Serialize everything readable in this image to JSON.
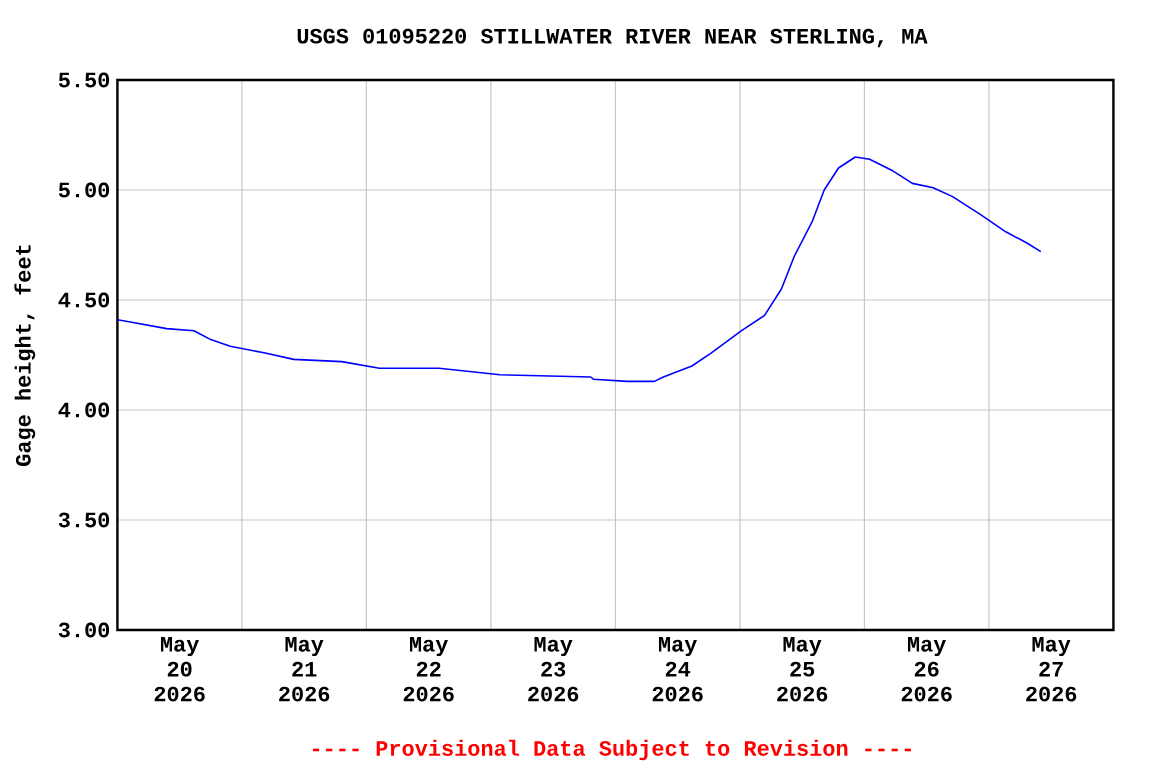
{
  "chart_data": {
    "type": "line",
    "title": "USGS 01095220 STILLWATER RIVER NEAR STERLING, MA",
    "ylabel": "Gage height, feet",
    "x": [
      "2026-05-20T00:00",
      "2026-05-20T02:30",
      "2026-05-20T09:30",
      "2026-05-20T14:45",
      "2026-05-20T18:00",
      "2026-05-20T21:45",
      "2026-05-21T04:15",
      "2026-05-21T10:00",
      "2026-05-21T19:15",
      "2026-05-22T02:30",
      "2026-05-22T14:00",
      "2026-05-23T01:45",
      "2026-05-23T19:15",
      "2026-05-23T19:45",
      "2026-05-24T02:15",
      "2026-05-24T07:30",
      "2026-05-24T09:15",
      "2026-05-24T14:45",
      "2026-05-24T18:30",
      "2026-05-25T00:15",
      "2026-05-25T04:45",
      "2026-05-25T08:00",
      "2026-05-25T10:30",
      "2026-05-25T14:00",
      "2026-05-25T16:15",
      "2026-05-25T19:00",
      "2026-05-25T22:15",
      "2026-05-26T01:00",
      "2026-05-26T05:15",
      "2026-05-26T09:15",
      "2026-05-26T13:15",
      "2026-05-26T17:00",
      "2026-05-26T22:15",
      "2026-05-27T03:15",
      "2026-05-27T07:15",
      "2026-05-27T10:00"
    ],
    "series": [
      {
        "color": "#0000ff",
        "values": [
          4.41,
          4.4,
          4.37,
          4.36,
          4.32,
          4.29,
          4.26,
          4.23,
          4.22,
          4.19,
          4.19,
          4.16,
          4.15,
          4.14,
          4.13,
          4.13,
          4.15,
          4.2,
          4.26,
          4.36,
          4.43,
          4.55,
          4.7,
          4.86,
          5.0,
          5.1,
          5.15,
          5.14,
          5.09,
          5.03,
          5.01,
          4.97,
          4.89,
          4.81,
          4.76,
          4.72
        ]
      }
    ],
    "xlim": [
      "2026-05-20T00:00",
      "2026-05-28T00:00"
    ],
    "xticks": [
      {
        "value": "2026-05-21T00:00",
        "label": null
      },
      {
        "value": "2026-05-22T00:00",
        "label": null
      },
      {
        "value": "2026-05-23T00:00",
        "label": null
      },
      {
        "value": "2026-05-24T00:00",
        "label": null
      },
      {
        "value": "2026-05-25T00:00",
        "label": null
      },
      {
        "value": "2026-05-26T00:00",
        "label": null
      },
      {
        "value": "2026-05-27T00:00",
        "label": null
      },
      {
        "value": "2026-05-20T12:00",
        "label": "May 20 2026"
      },
      {
        "value": "2026-05-21T12:00",
        "label": "May 21 2026"
      },
      {
        "value": "2026-05-22T12:00",
        "label": "May 22 2026"
      },
      {
        "value": "2026-05-23T12:00",
        "label": "May 23 2026"
      },
      {
        "value": "2026-05-24T12:00",
        "label": "May 24 2026"
      },
      {
        "value": "2026-05-25T12:00",
        "label": "May 25 2026"
      },
      {
        "value": "2026-05-26T12:00",
        "label": "May 26 2026"
      },
      {
        "value": "2026-05-27T12:00",
        "label": "May 27 2026"
      }
    ],
    "ylim": [
      3,
      5.5
    ],
    "yticks": [
      {
        "value": 3,
        "label": "3.00"
      },
      {
        "value": 3.5,
        "label": "3.50"
      },
      {
        "value": 4,
        "label": "4.00"
      },
      {
        "value": 4.5,
        "label": "4.50"
      },
      {
        "value": 5,
        "label": "5.00"
      },
      {
        "value": 5.5,
        "label": "5.50"
      }
    ],
    "grid": true,
    "annotations": [
      "---- Provisional Data Subject to Revision ----"
    ]
  }
}
